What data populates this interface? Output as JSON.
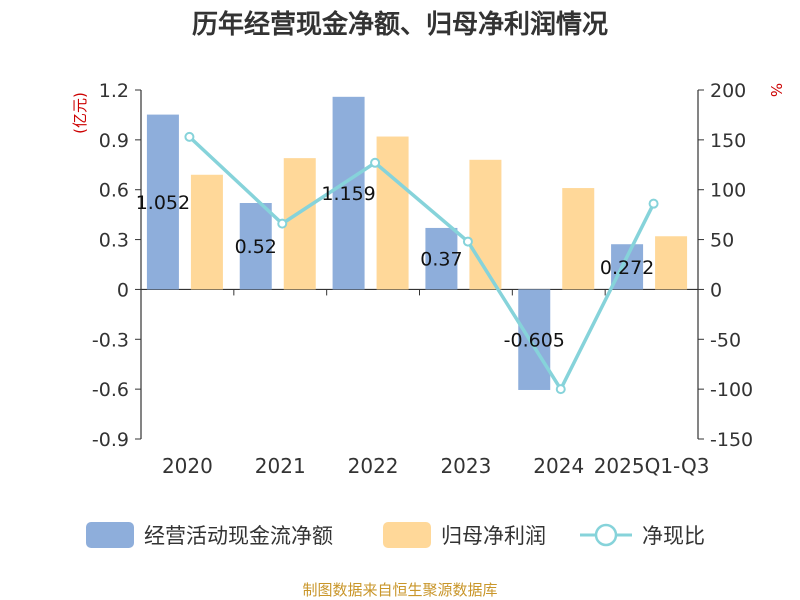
{
  "chart_data": {
    "type": "bar",
    "title": "历年经营现金净额、归母净利润情况",
    "categories": [
      "2020",
      "2021",
      "2022",
      "2023",
      "2024",
      "2025Q1-Q3"
    ],
    "series": [
      {
        "name": "经营活动现金流净额",
        "type": "bar",
        "axis": "left",
        "color": "#8eaedb",
        "values": [
          1.052,
          0.52,
          1.159,
          0.37,
          -0.605,
          0.272
        ],
        "labels": [
          "1.052",
          "0.52",
          "1.159",
          "0.37",
          "-0.605",
          "0.272"
        ]
      },
      {
        "name": "归母净利润",
        "type": "bar",
        "axis": "left",
        "color": "#ffd899",
        "values": [
          0.69,
          0.79,
          0.92,
          0.78,
          0.61,
          0.32
        ]
      },
      {
        "name": "净现比",
        "type": "line",
        "axis": "right",
        "color": "#86d3da",
        "values": [
          153,
          66,
          127,
          48,
          -100,
          86
        ]
      }
    ],
    "left_axis": {
      "unit": "(亿元)",
      "min": -0.9,
      "max": 1.2,
      "step": 0.3,
      "ticks": [
        "1.2",
        "0.9",
        "0.6",
        "0.3",
        "0",
        "-0.3",
        "-0.6",
        "-0.9"
      ]
    },
    "right_axis": {
      "unit": "%",
      "min": -150,
      "max": 200,
      "step": 50,
      "ticks": [
        "200",
        "150",
        "100",
        "50",
        "0",
        "-50",
        "-100",
        "-150"
      ]
    },
    "legend_position": "bottom",
    "source": "制图数据来自恒生聚源数据库"
  }
}
